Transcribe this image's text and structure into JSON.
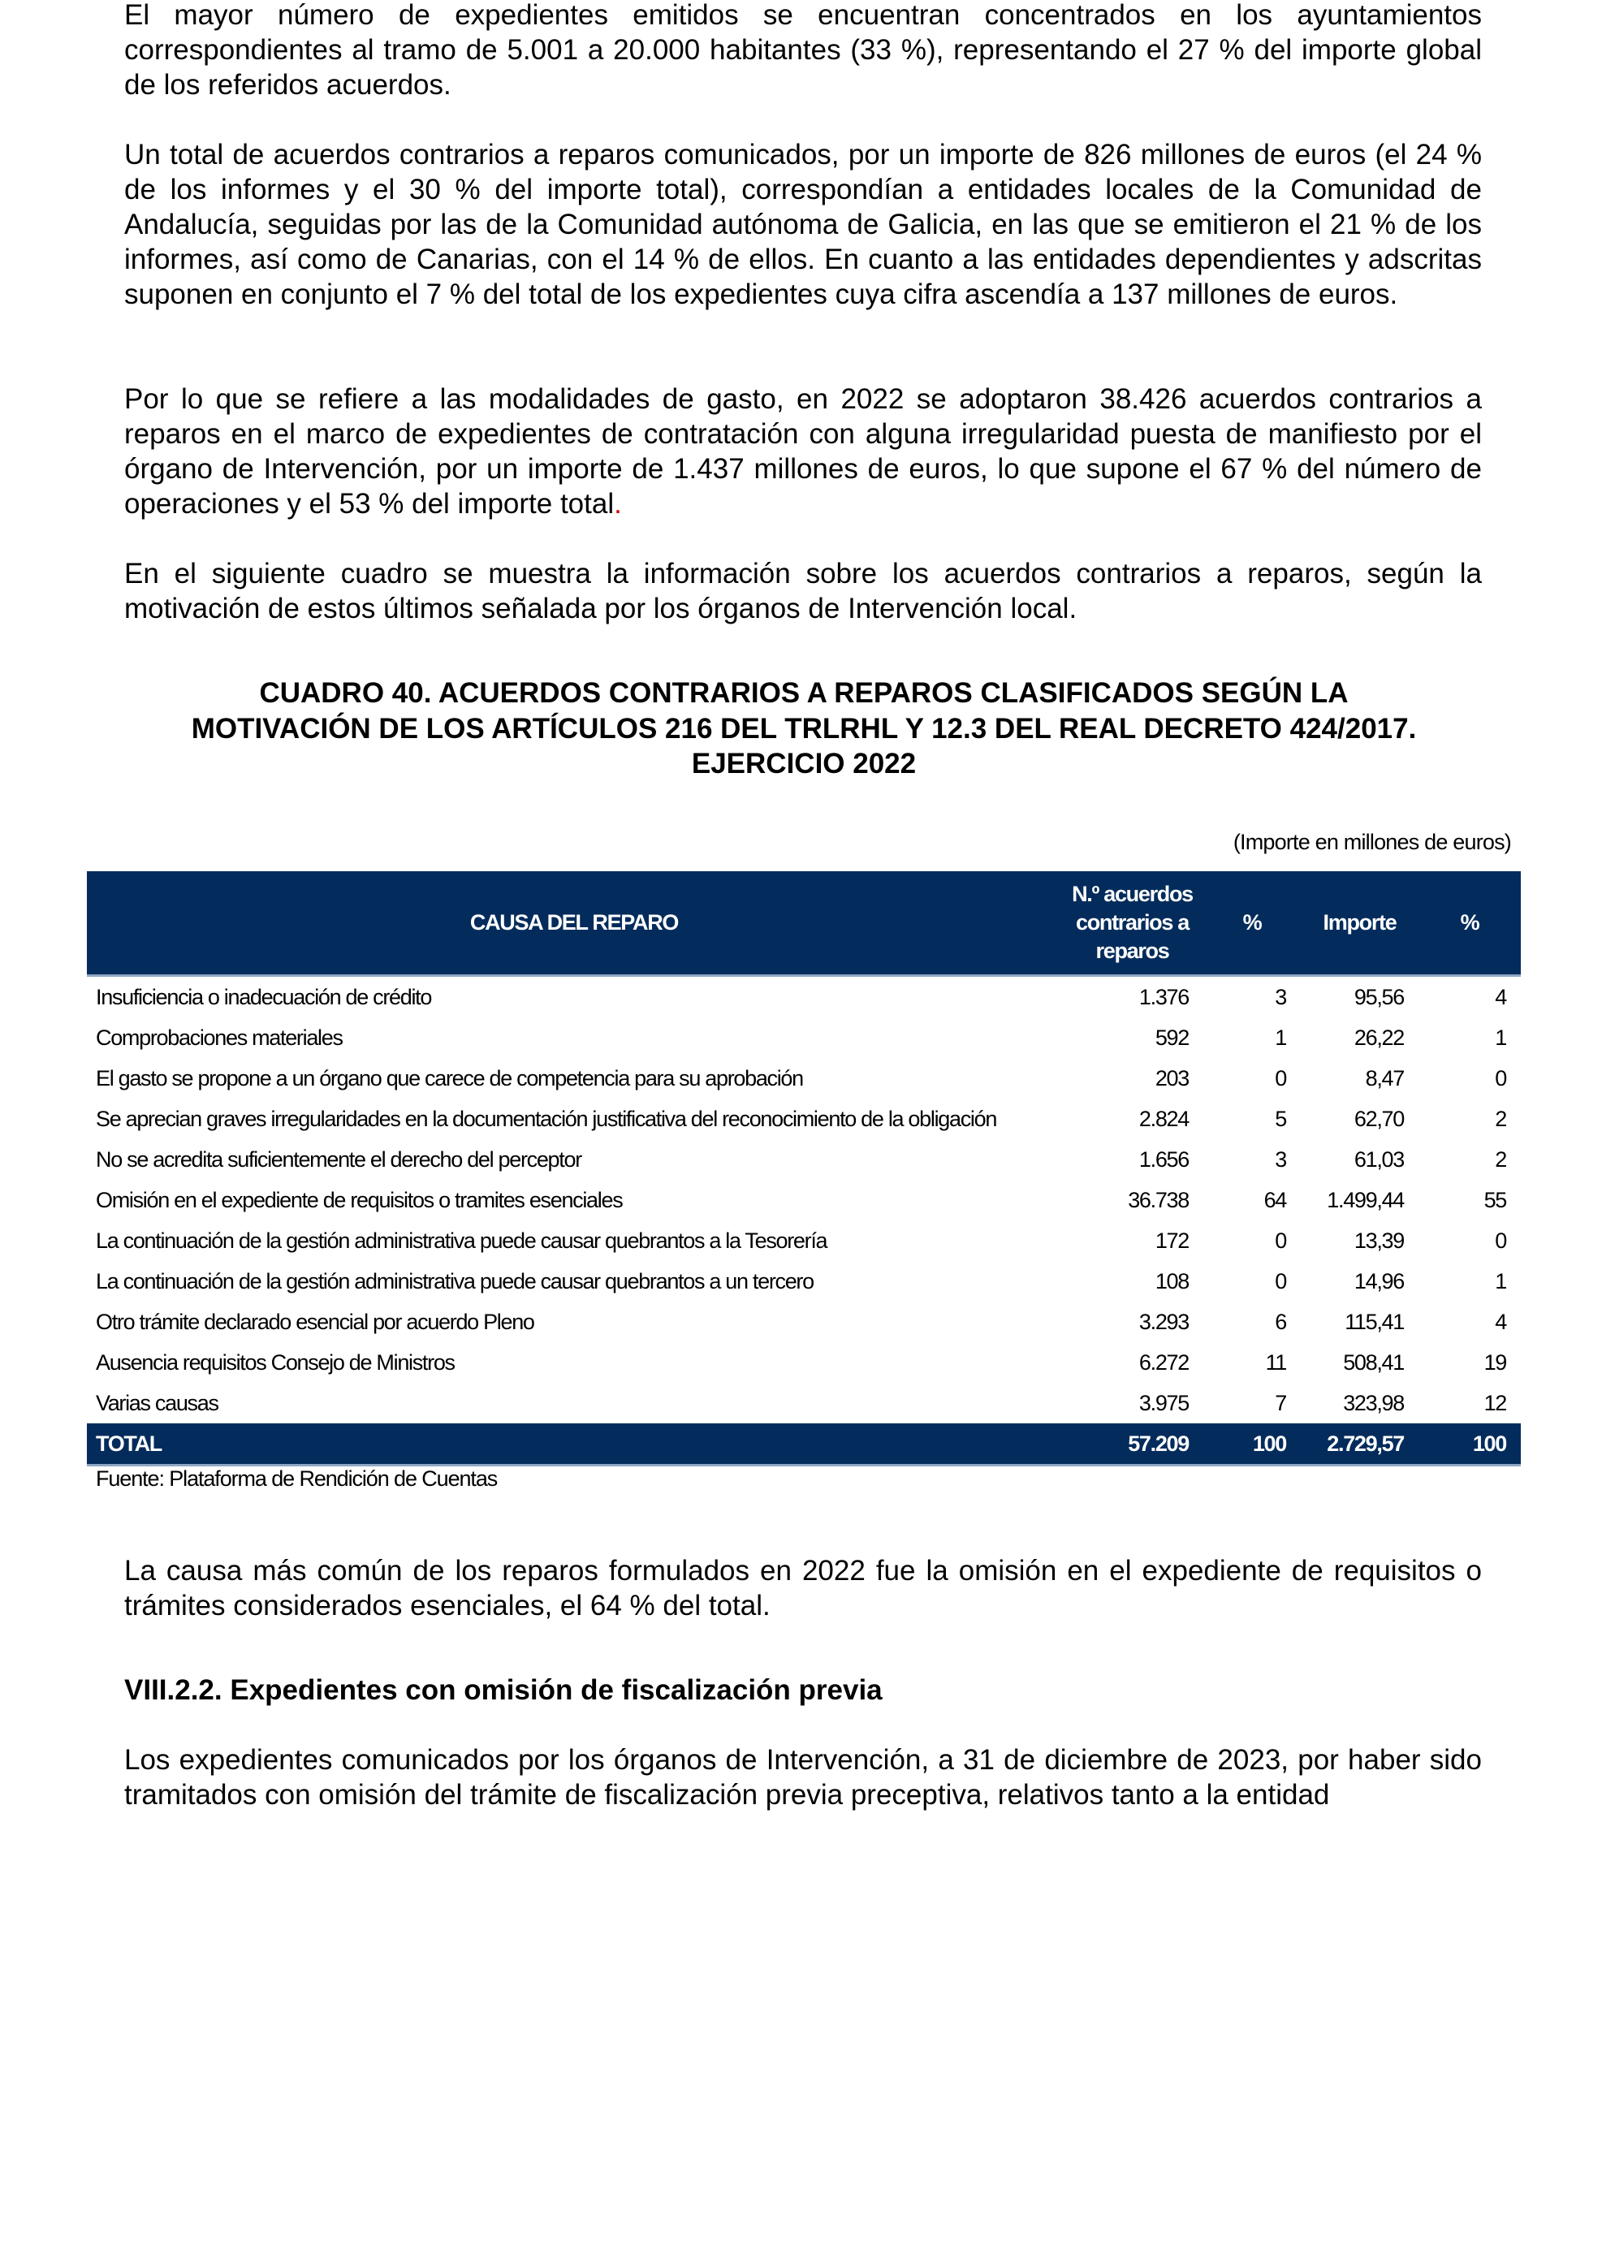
{
  "paragraphs": {
    "p1": "El mayor número de expedientes emitidos se encuentran concentrados en los ayuntamientos correspondientes al tramo de 5.001 a 20.000 habitantes (33 %), representando el 27 % del importe global de los referidos acuerdos.",
    "p2": "Un total de acuerdos contrarios a reparos comunicados, por un importe de 826 millones de euros (el 24 % de los informes y el 30 % del importe total), correspondían a entidades locales de la Comunidad de Andalucía, seguidas por las de la Comunidad autónoma de Galicia, en las que se emitieron el 21 % de los informes, así como de Canarias, con el 14 % de ellos. En cuanto a las entidades dependientes y adscritas suponen en conjunto el 7 % del total de los expedientes cuya cifra ascendía a 137 millones de euros.",
    "p3": "Por lo que se refiere a las modalidades de gasto, en 2022 se adoptaron 38.426 acuerdos contrarios a reparos en el marco de expedientes de contratación con alguna irregularidad puesta de manifiesto por el órgano de Intervención, por un importe de 1.437 millones de euros, lo que supone el 67 % del número de operaciones y el 53 % del importe total",
    "p3_end": ".",
    "p4": "En el siguiente cuadro se muestra la información sobre los acuerdos contrarios a reparos, según la motivación de estos últimos señalada por los órganos de Intervención local.",
    "p5": "La causa más común de los reparos formulados en 2022 fue la omisión en el expediente de requisitos o trámites considerados esenciales, el 64 % del total.",
    "p6": "Los expedientes comunicados por los órganos de Intervención, a 31 de diciembre de 2023, por haber sido tramitados con omisión del trámite de fiscalización previa preceptiva, relativos tanto a la entidad"
  },
  "table_title": {
    "line1": "CUADRO 40.  ACUERDOS CONTRARIOS A REPAROS CLASIFICADOS SEGÚN LA",
    "line2": "MOTIVACIÓN DE LOS ARTÍCULOS 216 DEL TRLRHL Y 12.3 DEL REAL DECRETO 424/2017.",
    "line3": "EJERCICIO 2022"
  },
  "units": "(Importe en millones de euros)",
  "colors": {
    "header_bg": "#032c5c",
    "accent_red": "#d00000"
  },
  "table": {
    "headers": [
      "CAUSA DEL REPARO",
      "N.º acuerdos contrarios a reparos",
      "%",
      "Importe",
      "%"
    ],
    "rows": [
      [
        "Insuficiencia o inadecuación de crédito",
        "1.376",
        "3",
        "95,56",
        "4"
      ],
      [
        "Comprobaciones materiales",
        "592",
        "1",
        "26,22",
        "1"
      ],
      [
        "El gasto se propone a un órgano que carece de competencia para su aprobación",
        "203",
        "0",
        "8,47",
        "0"
      ],
      [
        "Se aprecian graves irregularidades en la documentación justificativa del reconocimiento de la obligación",
        "2.824",
        "5",
        "62,70",
        "2"
      ],
      [
        "No se acredita suficientemente el derecho del perceptor",
        "1.656",
        "3",
        "61,03",
        "2"
      ],
      [
        "Omisión en el expediente de requisitos o tramites esenciales",
        "36.738",
        "64",
        "1.499,44",
        "55"
      ],
      [
        "La continuación de la gestión administrativa puede causar quebrantos a la Tesorería",
        "172",
        "0",
        "13,39",
        "0"
      ],
      [
        "La continuación de la gestión administrativa puede causar quebrantos a un tercero",
        "108",
        "0",
        "14,96",
        "1"
      ],
      [
        "Otro trámite declarado esencial por acuerdo Pleno",
        "3.293",
        "6",
        "115,41",
        "4"
      ],
      [
        "Ausencia requisitos Consejo de Ministros",
        "6.272",
        "11",
        "508,41",
        "19"
      ],
      [
        "Varias causas",
        "3.975",
        "7",
        "323,98",
        "12"
      ]
    ],
    "total": [
      "TOTAL",
      "57.209",
      "100",
      "2.729,57",
      "100"
    ]
  },
  "source": "Fuente: Plataforma de Rendición de Cuentas",
  "section_heading": "VIII.2.2.  Expedientes con omisión de fiscalización previa"
}
